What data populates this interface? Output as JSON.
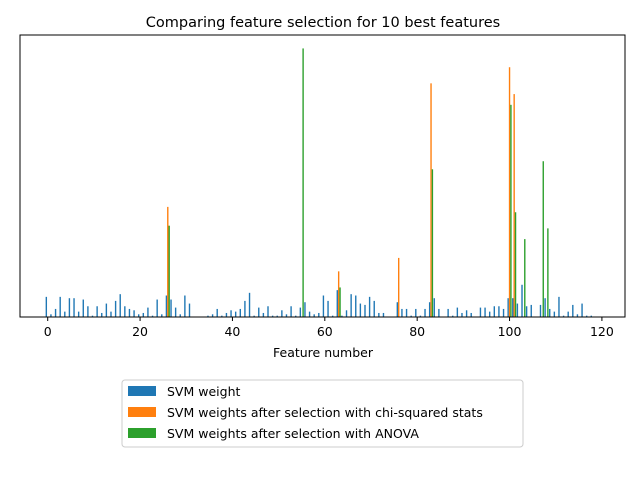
{
  "chart_data": {
    "type": "bar",
    "title": "Comparing feature selection for 10 best features",
    "xlabel": "Feature number",
    "ylabel": "",
    "xlim": [
      -6,
      125
    ],
    "ylim": [
      0,
      1.05
    ],
    "xticks": [
      0,
      20,
      40,
      60,
      80,
      100,
      120
    ],
    "yticks": [],
    "legend_position": "bottom-center",
    "series": [
      {
        "name": "SVM weight",
        "color": "#1f77b4",
        "x": [
          0,
          1,
          2,
          3,
          4,
          5,
          6,
          7,
          8,
          9,
          10,
          11,
          12,
          13,
          14,
          15,
          16,
          17,
          18,
          19,
          20,
          21,
          22,
          23,
          24,
          25,
          26,
          27,
          28,
          29,
          30,
          31,
          32,
          33,
          34,
          35,
          36,
          37,
          38,
          39,
          40,
          41,
          42,
          43,
          44,
          45,
          46,
          47,
          48,
          49,
          50,
          51,
          52,
          53,
          54,
          55,
          56,
          57,
          58,
          59,
          60,
          61,
          62,
          63,
          64,
          65,
          66,
          67,
          68,
          69,
          70,
          71,
          72,
          73,
          74,
          75,
          76,
          77,
          78,
          79,
          80,
          81,
          82,
          83,
          84,
          85,
          86,
          87,
          88,
          89,
          90,
          91,
          92,
          93,
          94,
          95,
          96,
          97,
          98,
          99,
          100,
          101,
          102,
          103,
          104,
          105,
          106,
          107,
          108,
          109,
          110,
          111,
          112,
          113,
          114,
          115,
          116,
          117,
          118,
          119
        ],
        "values": [
          0.075,
          0.01,
          0.03,
          0.075,
          0.02,
          0.07,
          0.07,
          0.02,
          0.065,
          0.04,
          0.005,
          0.04,
          0.015,
          0.05,
          0.02,
          0.06,
          0.085,
          0.04,
          0.03,
          0.025,
          0.01,
          0.015,
          0.035,
          0.005,
          0.065,
          0.01,
          0.08,
          0.065,
          0.035,
          0.01,
          0.08,
          0.05,
          0.0,
          0.0,
          0.0,
          0.005,
          0.01,
          0.03,
          0.005,
          0.015,
          0.025,
          0.02,
          0.03,
          0.06,
          0.09,
          0.005,
          0.035,
          0.015,
          0.04,
          0.005,
          0.005,
          0.025,
          0.01,
          0.04,
          0.005,
          0.035,
          0.055,
          0.02,
          0.01,
          0.015,
          0.08,
          0.06,
          0.005,
          0.1,
          0.005,
          0.025,
          0.085,
          0.08,
          0.05,
          0.045,
          0.075,
          0.06,
          0.015,
          0.015,
          0.0,
          0.0,
          0.055,
          0.03,
          0.03,
          0.005,
          0.03,
          0.005,
          0.03,
          0.055,
          0.07,
          0.03,
          0.0,
          0.03,
          0.005,
          0.035,
          0.015,
          0.025,
          0.015,
          0.0,
          0.035,
          0.035,
          0.02,
          0.04,
          0.04,
          0.03,
          0.07,
          0.07,
          0.05,
          0.12,
          0.04,
          0.045,
          0.0,
          0.045,
          0.07,
          0.03,
          0.02,
          0.075,
          0.005,
          0.02,
          0.045,
          0.01,
          0.05,
          0.005,
          0.005,
          0.0
        ]
      },
      {
        "name": "SVM weights after selection with chi-squared stats",
        "color": "#ff7f0e",
        "x": [
          26,
          63,
          76,
          83,
          100,
          101
        ],
        "values": [
          0.41,
          0.17,
          0.22,
          0.87,
          0.93,
          0.83
        ]
      },
      {
        "name": "SVM weights after selection with ANOVA",
        "color": "#2ca02c",
        "x": [
          26,
          55,
          63,
          83,
          100,
          101,
          103,
          107,
          108
        ],
        "values": [
          0.34,
          1.0,
          0.11,
          0.55,
          0.79,
          0.39,
          0.29,
          0.58,
          0.33
        ]
      }
    ]
  }
}
